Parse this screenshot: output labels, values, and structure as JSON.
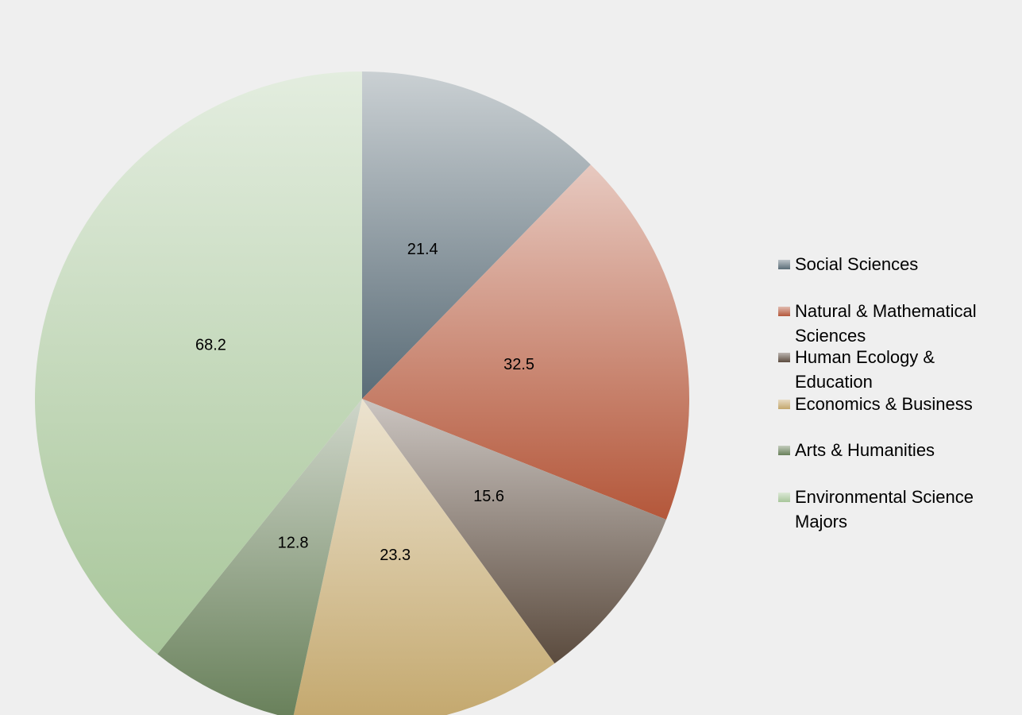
{
  "chart_data": {
    "type": "pie",
    "categories": [
      "Social Sciences",
      "Natural & Mathematical Sciences",
      "Human Ecology & Education",
      "Economics & Business",
      "Arts & Humanities",
      "Environmental Science Majors"
    ],
    "values": [
      21.4,
      32.5,
      15.6,
      23.3,
      12.8,
      68.2
    ],
    "colors": [
      "#5a6c77",
      "#b4573a",
      "#5b4b3e",
      "#c3a76c",
      "#68805a",
      "#a8c69a"
    ],
    "legend": "right"
  }
}
